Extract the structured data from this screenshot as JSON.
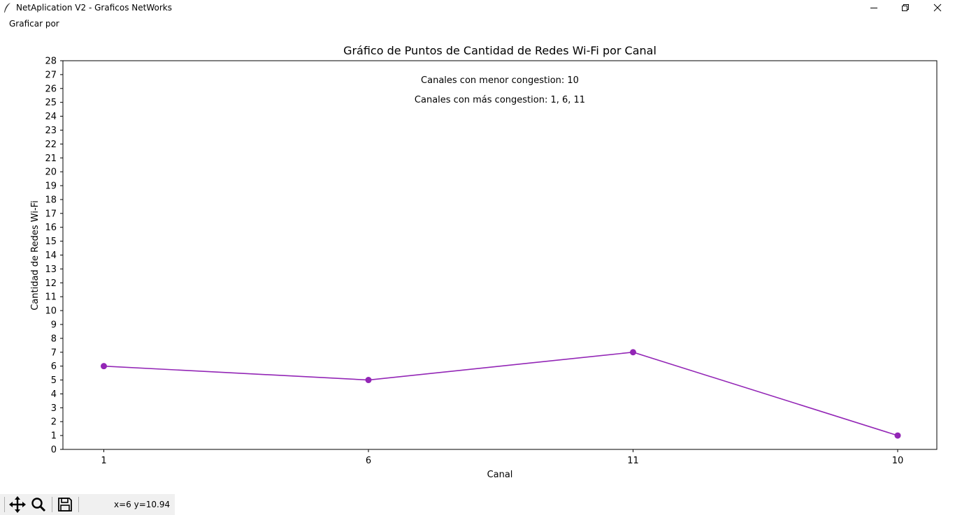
{
  "window": {
    "title": "NetAplication V2 - Graficos NetWorks",
    "icon": "feather-icon",
    "controls": [
      "minimize-icon",
      "restore-icon",
      "close-icon"
    ]
  },
  "menubar": {
    "items": [
      {
        "label": "Graficar por"
      }
    ]
  },
  "toolbar": {
    "buttons": [
      "move-icon",
      "zoom-icon",
      "save-icon"
    ],
    "coords_text": "x=6 y=10.94"
  },
  "colors": {
    "line": "#9326b6",
    "axes": "#000000",
    "toolbar_bg": "#f0f0f0"
  },
  "chart_data": {
    "type": "line",
    "title": "Gráfico de Puntos de Cantidad de Redes Wi-Fi por Canal",
    "xlabel": "Canal",
    "ylabel": "Cantidad de Redes Wi-Fi",
    "categories": [
      "1",
      "6",
      "11",
      "10"
    ],
    "series": [
      {
        "values": [
          6,
          5,
          7,
          1
        ],
        "marker": "circle"
      }
    ],
    "ylim": [
      0,
      28
    ],
    "yticks": [
      0,
      1,
      2,
      3,
      4,
      5,
      6,
      7,
      8,
      9,
      10,
      11,
      12,
      13,
      14,
      15,
      16,
      17,
      18,
      19,
      20,
      21,
      22,
      23,
      24,
      25,
      26,
      27,
      28
    ],
    "grid": false,
    "annotations": [
      "Canales con menor congestion: 10",
      "Canales con más congestion: 1, 6, 11"
    ]
  }
}
